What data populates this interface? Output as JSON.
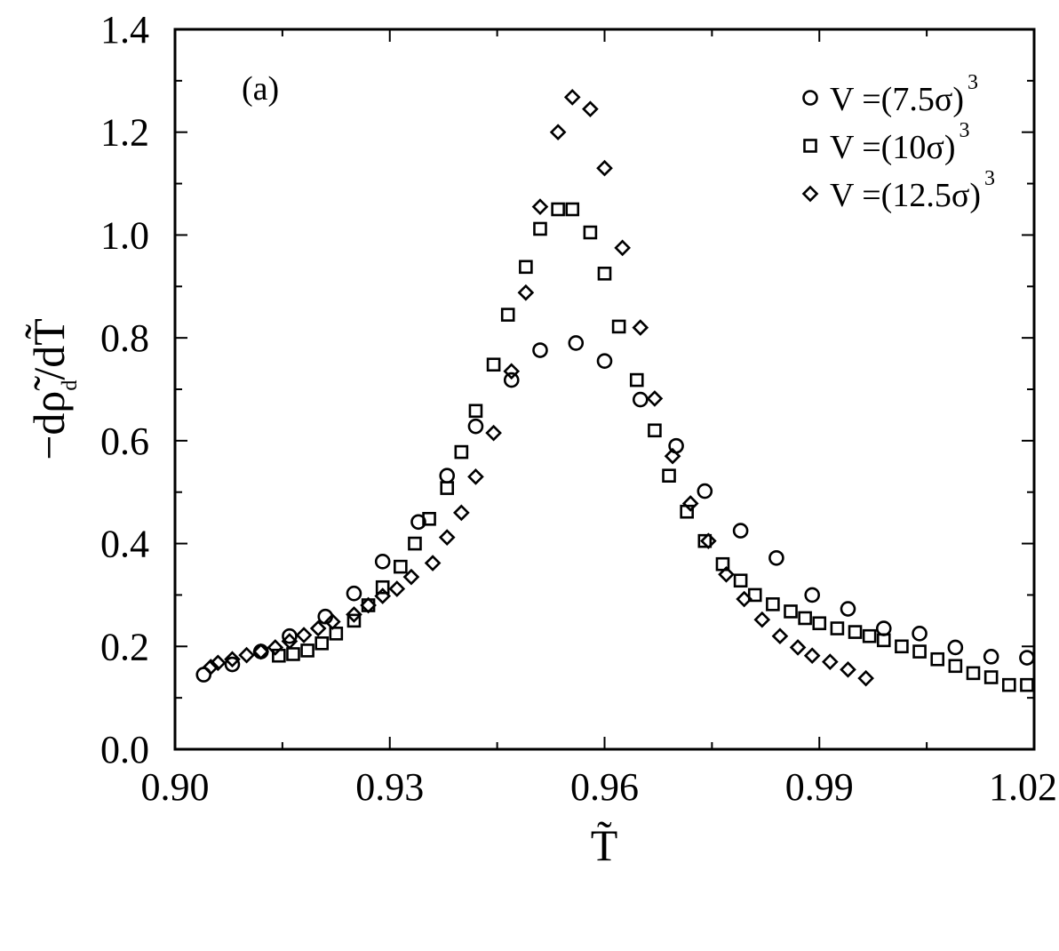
{
  "chart_data": {
    "type": "scatter",
    "panel_label": "(a)",
    "xlabel": "T̃",
    "ylabel": {
      "prefix": "−d",
      "rho": "ρ̃",
      "sub": "d",
      "suffix": "/dT̃"
    },
    "xlim": [
      0.9,
      1.02
    ],
    "ylim": [
      0.0,
      1.4
    ],
    "x_ticks": [
      "0.90",
      "0.93",
      "0.96",
      "0.99",
      "1.02"
    ],
    "y_ticks": [
      "0.0",
      "0.2",
      "0.4",
      "0.6",
      "0.8",
      "1.0",
      "1.2",
      "1.4"
    ],
    "x_tick_values": [
      0.9,
      0.93,
      0.96,
      0.99,
      1.02
    ],
    "y_tick_values": [
      0.0,
      0.2,
      0.4,
      0.6,
      0.8,
      1.0,
      1.2,
      1.4
    ],
    "legend_position": "top-right",
    "grid": false,
    "series": [
      {
        "name": "V =(7.5σ)",
        "name_sup": "3",
        "marker": "circle",
        "x": [
          0.904,
          0.908,
          0.912,
          0.916,
          0.921,
          0.925,
          0.929,
          0.934,
          0.938,
          0.942,
          0.947,
          0.951,
          0.956,
          0.96,
          0.965,
          0.97,
          0.974,
          0.979,
          0.984,
          0.989,
          0.994,
          0.999,
          1.004,
          1.009,
          1.014,
          1.019
        ],
        "y": [
          0.145,
          0.165,
          0.19,
          0.22,
          0.258,
          0.303,
          0.365,
          0.442,
          0.532,
          0.628,
          0.718,
          0.776,
          0.79,
          0.755,
          0.68,
          0.59,
          0.502,
          0.425,
          0.372,
          0.3,
          0.273,
          0.235,
          0.225,
          0.198,
          0.18,
          0.178
        ]
      },
      {
        "name": "V =(10σ)",
        "name_sup": "3",
        "marker": "square",
        "x": [
          0.9145,
          0.9165,
          0.9185,
          0.9205,
          0.9225,
          0.925,
          0.927,
          0.929,
          0.9315,
          0.9335,
          0.9355,
          0.938,
          0.94,
          0.942,
          0.9445,
          0.9465,
          0.949,
          0.951,
          0.9535,
          0.9555,
          0.958,
          0.96,
          0.962,
          0.9645,
          0.967,
          0.969,
          0.9715,
          0.974,
          0.9765,
          0.979,
          0.981,
          0.9835,
          0.986,
          0.988,
          0.99,
          0.9925,
          0.995,
          0.997,
          0.999,
          1.0015,
          1.004,
          1.0065,
          1.009,
          1.0115,
          1.014,
          1.0165,
          1.019
        ],
        "y": [
          0.182,
          0.185,
          0.192,
          0.206,
          0.225,
          0.25,
          0.28,
          0.315,
          0.355,
          0.4,
          0.448,
          0.508,
          0.578,
          0.658,
          0.748,
          0.845,
          0.938,
          1.012,
          1.05,
          1.05,
          1.005,
          0.925,
          0.822,
          0.718,
          0.62,
          0.532,
          0.462,
          0.405,
          0.36,
          0.328,
          0.3,
          0.282,
          0.268,
          0.255,
          0.245,
          0.235,
          0.228,
          0.22,
          0.212,
          0.2,
          0.19,
          0.175,
          0.162,
          0.148,
          0.14,
          0.125,
          0.125
        ]
      },
      {
        "name": "V =(12.5σ)",
        "name_sup": "3",
        "marker": "diamond",
        "x": [
          0.905,
          0.906,
          0.908,
          0.91,
          0.912,
          0.914,
          0.916,
          0.918,
          0.92,
          0.922,
          0.925,
          0.927,
          0.929,
          0.931,
          0.933,
          0.936,
          0.938,
          0.94,
          0.942,
          0.9445,
          0.947,
          0.949,
          0.951,
          0.9535,
          0.9555,
          0.958,
          0.96,
          0.9625,
          0.965,
          0.967,
          0.9695,
          0.972,
          0.9745,
          0.977,
          0.9795,
          0.982,
          0.9845,
          0.987,
          0.989,
          0.9915,
          0.994,
          0.9965
        ],
        "y": [
          0.16,
          0.168,
          0.175,
          0.183,
          0.19,
          0.198,
          0.21,
          0.222,
          0.235,
          0.248,
          0.262,
          0.28,
          0.298,
          0.312,
          0.335,
          0.362,
          0.412,
          0.46,
          0.53,
          0.615,
          0.735,
          0.888,
          1.055,
          1.2,
          1.268,
          1.245,
          1.13,
          0.975,
          0.82,
          0.682,
          0.57,
          0.478,
          0.405,
          0.34,
          0.292,
          0.252,
          0.22,
          0.198,
          0.182,
          0.17,
          0.155,
          0.138
        ]
      }
    ]
  }
}
